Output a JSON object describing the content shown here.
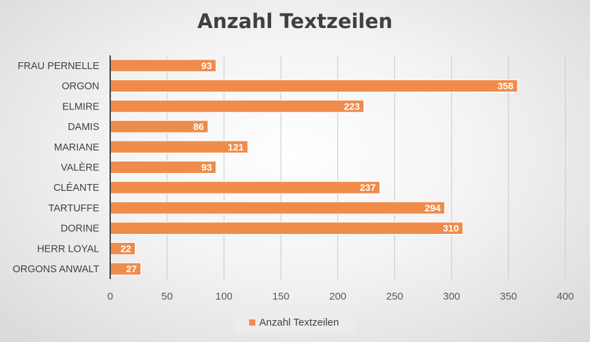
{
  "chart_data": {
    "type": "bar",
    "orientation": "horizontal",
    "title": "Anzahl Textzeilen",
    "categories": [
      "FRAU PERNELLE",
      "ORGON",
      "ELMIRE",
      "DAMIS",
      "MARIANE",
      "VALÈRE",
      "CLÉANTE",
      "TARTUFFE",
      "DORINE",
      "HERR LOYAL",
      "ORGONS ANWALT"
    ],
    "series": [
      {
        "name": "Anzahl Textzeilen",
        "values": [
          93,
          358,
          223,
          86,
          121,
          93,
          237,
          294,
          310,
          22,
          27
        ],
        "color": "#ef8c4b"
      }
    ],
    "xlim": [
      0,
      400
    ],
    "xticks": [
      0,
      50,
      100,
      150,
      200,
      250,
      300,
      350,
      400
    ],
    "grid": true,
    "legend_position": "bottom",
    "data_labels": true
  }
}
